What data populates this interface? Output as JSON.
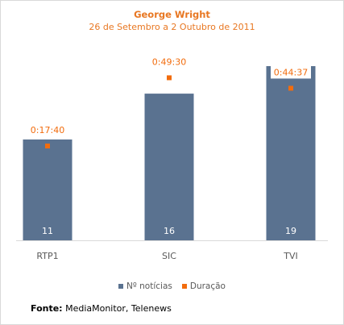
{
  "chart_data": {
    "type": "bar",
    "title": "George Wright",
    "subtitle": "26 de Setembro a 2 Outubro de 2011",
    "categories": [
      "RTP1",
      "SIC",
      "TVI"
    ],
    "series": [
      {
        "name": "Nº notícias",
        "type": "bar",
        "values": [
          11,
          16,
          19
        ],
        "color": "#5a7290"
      },
      {
        "name": "Duração",
        "type": "point",
        "values": [
          "0:17:40",
          "0:49:30",
          "0:44:37"
        ],
        "values_seconds": [
          1060,
          2970,
          2677
        ],
        "color": "#f26c0d"
      }
    ],
    "legend_position": "bottom",
    "grid": false
  },
  "source": {
    "label": "Fonte:",
    "text": "MediaMonitor, Telenews"
  }
}
